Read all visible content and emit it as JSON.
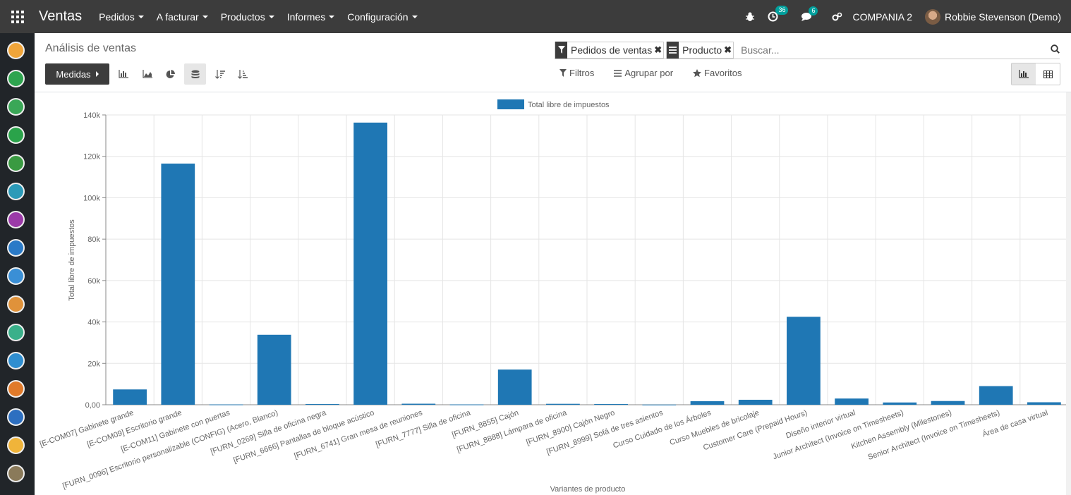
{
  "topbar": {
    "app_title": "Ventas",
    "menu": [
      "Pedidos",
      "A facturar",
      "Productos",
      "Informes",
      "Configuración"
    ],
    "activity_count": "36",
    "messages_count": "6",
    "company": "COMPANIA 2",
    "user": "Robbie Stevenson (Demo)"
  },
  "sidebar": {
    "apps": [
      {
        "name": "app-1",
        "color": "#f0a53a"
      },
      {
        "name": "app-2",
        "color": "#2ea44f"
      },
      {
        "name": "app-3",
        "color": "#3aa757"
      },
      {
        "name": "app-4",
        "color": "#2aa34a"
      },
      {
        "name": "app-5",
        "color": "#3a9a42"
      },
      {
        "name": "app-6",
        "color": "#2b9ab8"
      },
      {
        "name": "app-7",
        "color": "#9b3aa8"
      },
      {
        "name": "app-8",
        "color": "#2a7ac7"
      },
      {
        "name": "app-9",
        "color": "#3a8fd6"
      },
      {
        "name": "app-10",
        "color": "#e0923a"
      },
      {
        "name": "app-11",
        "color": "#3ab08a"
      },
      {
        "name": "app-12",
        "color": "#2f8ed0"
      },
      {
        "name": "app-13",
        "color": "#e07a2a"
      },
      {
        "name": "app-14",
        "color": "#2d6fc0"
      },
      {
        "name": "app-15",
        "color": "#f0b43a"
      },
      {
        "name": "app-16",
        "color": "#8a7a5a"
      }
    ]
  },
  "control": {
    "title": "Análisis de ventas",
    "measures_label": "Medidas",
    "facets": [
      {
        "label": "Pedidos de ventas",
        "icon": "filter-icon"
      },
      {
        "label": "Producto",
        "icon": "group-by-icon"
      }
    ],
    "search_placeholder": "Buscar...",
    "filters_label": "Filtros",
    "groupby_label": "Agrupar por",
    "favorites_label": "Favoritos"
  },
  "chart_data": {
    "type": "bar",
    "legend": [
      "Total libre de impuestos"
    ],
    "legend_position": "top",
    "xlabel": "Variantes de producto",
    "ylabel": "Total libre de impuestos",
    "ylim": [
      0,
      140000
    ],
    "yticks": [
      "0,00",
      "20k",
      "40k",
      "60k",
      "80k",
      "100k",
      "120k",
      "140k"
    ],
    "grid": true,
    "color": "#1f77b4",
    "categories": [
      "[E-COM07] Gabinete grande",
      "[E-COM09] Escritorio grande",
      "[E-COM11] Gabinete con puertas",
      "[FURN_0096] Escritorio personalizable (CONFIG) (Acero, Blanco)",
      "[FURN_0269] Silla de oficina negra",
      "[FURN_6666] Pantallas de bloque acústico",
      "[FURN_6741] Gran mesa de reuniones",
      "[FURN_7777] Silla de oficina",
      "[FURN_8855] Cajón",
      "[FURN_8888] Lámpara de oficina",
      "[FURN_8900] Cajón Negro",
      "[FURN_8999] Sofá de tres asientos",
      "Curso Cuidado de los Árboles",
      "Curso Muebles de bricolaje",
      "Customer Care (Prepaid Hours)",
      "Diseño interior virtual",
      "Junior Architect (Invoice on Timesheets)",
      "Kitchen Assembly (Milestones)",
      "Senior Architect (Invoice on Timesheets)",
      "Área de casa virtual"
    ],
    "values": [
      7400,
      116500,
      150,
      33800,
      350,
      136300,
      500,
      150,
      17000,
      450,
      350,
      80,
      1700,
      2400,
      42500,
      3000,
      1100,
      1800,
      9000,
      1200
    ]
  }
}
